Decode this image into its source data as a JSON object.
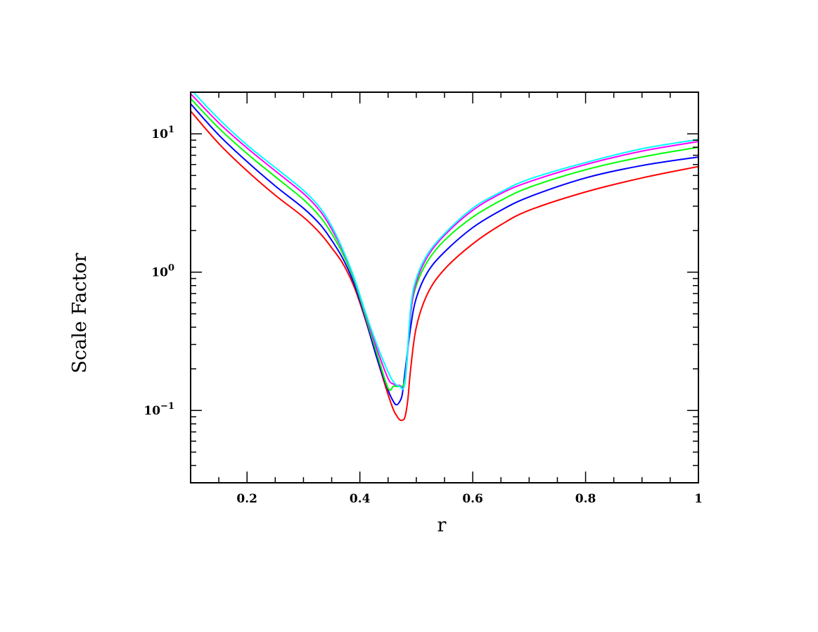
{
  "chart_data": {
    "type": "line",
    "title": "",
    "xlabel": "r",
    "ylabel": "Scale Factor",
    "xlim": [
      0.1,
      1.0
    ],
    "ylim": [
      0.03,
      20
    ],
    "yscale": "log",
    "grid": false,
    "legend": "none",
    "x_ticks": [
      {
        "value": 0.2,
        "label": "0.2"
      },
      {
        "value": 0.4,
        "label": "0.4"
      },
      {
        "value": 0.6,
        "label": "0.6"
      },
      {
        "value": 0.8,
        "label": "0.8"
      },
      {
        "value": 1.0,
        "label": "1"
      }
    ],
    "y_ticks": [
      {
        "value": 0.1,
        "base": "10",
        "exp": "−1"
      },
      {
        "value": 1,
        "base": "10",
        "exp": "0"
      },
      {
        "value": 10,
        "base": "10",
        "exp": "1"
      }
    ],
    "series": [
      {
        "color": "#ff0000",
        "x": [
          0.1,
          0.15,
          0.2,
          0.25,
          0.3,
          0.33,
          0.35,
          0.37,
          0.39,
          0.41,
          0.43,
          0.45,
          0.46,
          0.465,
          0.47,
          0.475,
          0.48,
          0.485,
          0.49,
          0.5,
          0.52,
          0.55,
          0.6,
          0.65,
          0.7,
          0.8,
          0.9,
          1.0
        ],
        "y": [
          14.6,
          8.5,
          5.4,
          3.6,
          2.5,
          1.9,
          1.5,
          1.15,
          0.78,
          0.45,
          0.24,
          0.13,
          0.1,
          0.092,
          0.086,
          0.085,
          0.09,
          0.12,
          0.2,
          0.4,
          0.7,
          1.05,
          1.6,
          2.2,
          2.8,
          3.8,
          4.8,
          5.8
        ]
      },
      {
        "color": "#0000ff",
        "x": [
          0.1,
          0.15,
          0.2,
          0.25,
          0.3,
          0.33,
          0.35,
          0.37,
          0.39,
          0.41,
          0.43,
          0.45,
          0.46,
          0.465,
          0.47,
          0.475,
          0.48,
          0.49,
          0.5,
          0.52,
          0.55,
          0.6,
          0.65,
          0.7,
          0.8,
          0.9,
          1.0
        ],
        "y": [
          16.5,
          9.8,
          6.3,
          4.2,
          2.9,
          2.2,
          1.7,
          1.25,
          0.82,
          0.46,
          0.24,
          0.14,
          0.115,
          0.11,
          0.115,
          0.13,
          0.19,
          0.4,
          0.65,
          1.0,
          1.4,
          2.1,
          2.8,
          3.5,
          4.8,
          5.9,
          6.8
        ]
      },
      {
        "color": "#00ff00",
        "x": [
          0.1,
          0.15,
          0.2,
          0.25,
          0.3,
          0.33,
          0.35,
          0.37,
          0.39,
          0.41,
          0.43,
          0.45,
          0.46,
          0.47,
          0.48,
          0.49,
          0.5,
          0.52,
          0.55,
          0.6,
          0.65,
          0.7,
          0.8,
          0.9,
          1.0
        ],
        "y": [
          18.0,
          11.0,
          7.2,
          4.9,
          3.35,
          2.5,
          1.9,
          1.35,
          0.87,
          0.48,
          0.26,
          0.145,
          0.15,
          0.15,
          0.17,
          0.5,
          0.8,
          1.2,
          1.7,
          2.5,
          3.3,
          4.1,
          5.5,
          6.8,
          8.0
        ]
      },
      {
        "color": "#ff00ff",
        "x": [
          0.1,
          0.15,
          0.2,
          0.25,
          0.3,
          0.33,
          0.35,
          0.37,
          0.39,
          0.41,
          0.43,
          0.45,
          0.46,
          0.47,
          0.48,
          0.49,
          0.5,
          0.52,
          0.55,
          0.6,
          0.65,
          0.7,
          0.8,
          0.9,
          1.0
        ],
        "y": [
          19.5,
          12.0,
          7.9,
          5.4,
          3.7,
          2.75,
          2.05,
          1.42,
          0.9,
          0.5,
          0.28,
          0.17,
          0.155,
          0.152,
          0.16,
          0.5,
          0.85,
          1.3,
          1.85,
          2.8,
          3.7,
          4.5,
          6.0,
          7.5,
          8.8
        ]
      },
      {
        "color": "#00ffff",
        "x": [
          0.1,
          0.15,
          0.2,
          0.25,
          0.3,
          0.33,
          0.35,
          0.37,
          0.39,
          0.41,
          0.43,
          0.45,
          0.46,
          0.47,
          0.48,
          0.49,
          0.5,
          0.52,
          0.55,
          0.6,
          0.65,
          0.7,
          0.8,
          0.9,
          1.0
        ],
        "y": [
          21.0,
          12.8,
          8.3,
          5.7,
          3.9,
          2.9,
          2.15,
          1.45,
          0.91,
          0.51,
          0.3,
          0.19,
          0.16,
          0.15,
          0.16,
          0.55,
          0.9,
          1.35,
          1.9,
          2.9,
          3.8,
          4.7,
          6.2,
          7.8,
          9.1
        ]
      }
    ]
  }
}
